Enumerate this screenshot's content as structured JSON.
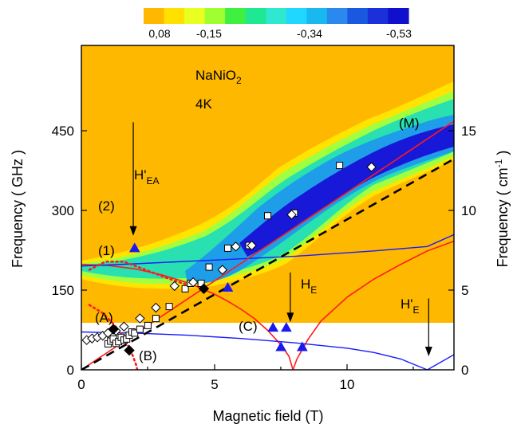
{
  "chart_data": {
    "type": "heatmap",
    "title": "",
    "xlabel": "Magnetic field (T)",
    "ylabel_left": "Frequency ( GHz )",
    "ylabel_right": "Frequency ( cm-1 )",
    "xlim": [
      0,
      14
    ],
    "ylim_left": [
      0,
      600
    ],
    "ylim_right": [
      0,
      20
    ],
    "x_ticks": [
      0,
      5,
      10
    ],
    "y_ticks_left": [
      0,
      150,
      300,
      450
    ],
    "y_ticks_right": [
      0,
      5,
      10,
      15
    ],
    "colorbar": {
      "tick_labels": [
        "0,08",
        "-0,15",
        "-0,34",
        "-0,53"
      ],
      "colors": [
        "#ffb800",
        "#ffe000",
        "#e8ff20",
        "#a0ff30",
        "#40f040",
        "#20e890",
        "#30e8d0",
        "#20d8ff",
        "#1ab8f0",
        "#2a88ee",
        "#1a58e0",
        "#1a30d8",
        "#1010cc"
      ]
    },
    "heatmap_colors": {
      "background": "#ffb800",
      "weak": "#ffe400",
      "mid_low": "#50f050",
      "mid": "#28e0b0",
      "strong": "#1e9ee8",
      "strongest": "#1818d8",
      "no_data": "#ffffff"
    },
    "no_data_below_frequency": 90,
    "annotations": {
      "sample": "NaNiO",
      "sample_sub": "2",
      "temperature": "4K",
      "M": "(M)",
      "one": "(1)",
      "two": "(2)",
      "A": "(A)",
      "B": "(B)",
      "C": "(C)",
      "HEA_main": "H'",
      "HEA_sub": "EA",
      "HE_main": "H",
      "HE_sub": "E",
      "HpE_main": "H'",
      "HpE_sub": "E"
    },
    "arrows": [
      {
        "name": "H'EA",
        "x": 1.95,
        "from": 458,
        "to": 248
      },
      {
        "name": "HE",
        "x": 7.85,
        "from": 180,
        "to": 88
      },
      {
        "name": "H'E",
        "x": 13.05,
        "from": 132,
        "to": 25
      }
    ],
    "series": [
      {
        "kind": "red-line",
        "x": [
          0,
          14
        ],
        "y": [
          0,
          460
        ]
      },
      {
        "kind": "red-curve-upper",
        "x": [
          0,
          1,
          2,
          3,
          4,
          5,
          5.5,
          6,
          6.5,
          7,
          7.5,
          7.8,
          7.95
        ],
        "y": [
          195,
          193,
          187,
          176,
          161,
          140,
          127,
          112,
          95,
          73,
          46,
          25,
          0
        ]
      },
      {
        "kind": "red-curve-lower",
        "x": [
          7.95,
          8.1,
          8.5,
          9,
          10,
          11,
          12,
          13,
          14
        ],
        "y": [
          0,
          20,
          55,
          90,
          135,
          168,
          195,
          220,
          238
        ]
      },
      {
        "kind": "black-dashed",
        "x": [
          0,
          14
        ],
        "y": [
          0,
          390
        ]
      },
      {
        "kind": "blue-line-upper",
        "x": [
          0,
          2,
          5,
          8,
          11,
          13,
          14
        ],
        "y": [
          192,
          196,
          203,
          210,
          220,
          228,
          250
        ]
      },
      {
        "kind": "blue-curve-lower",
        "x": [
          0,
          2,
          4,
          6,
          8,
          10,
          11,
          12,
          12.6,
          13,
          14
        ],
        "y": [
          70,
          68,
          64,
          58,
          50,
          40,
          32,
          20,
          8,
          0,
          28
        ]
      },
      {
        "kind": "red-dotted-upper",
        "x": [
          0.3,
          0.9,
          1.6,
          2.4,
          3.2,
          3.8,
          4.2
        ],
        "y": [
          185,
          200,
          200,
          185,
          170,
          160,
          155
        ]
      },
      {
        "kind": "red-dotted-lower",
        "x": [
          0.3,
          0.8,
          1.2,
          1.6,
          1.9,
          2.05,
          2.1
        ],
        "y": [
          120,
          105,
          85,
          60,
          30,
          10,
          0
        ]
      },
      {
        "kind": "open-squares",
        "points": [
          [
            1.0,
            48
          ],
          [
            1.1,
            53
          ],
          [
            1.2,
            57
          ],
          [
            1.3,
            49
          ],
          [
            1.4,
            52
          ],
          [
            1.5,
            60
          ],
          [
            1.6,
            55
          ],
          [
            1.7,
            57
          ],
          [
            1.8,
            64
          ],
          [
            1.9,
            70
          ],
          [
            2.0,
            68
          ],
          [
            2.2,
            75
          ],
          [
            2.5,
            82
          ],
          [
            2.8,
            95
          ],
          [
            3.3,
            117
          ],
          [
            3.9,
            150
          ],
          [
            4.1,
            160
          ],
          [
            4.5,
            160
          ],
          [
            4.8,
            190
          ],
          [
            5.5,
            225
          ],
          [
            6.3,
            230
          ],
          [
            7.0,
            285
          ],
          [
            8.0,
            290
          ],
          [
            9.7,
            378
          ]
        ]
      },
      {
        "kind": "open-diamonds",
        "points": [
          [
            0.2,
            55
          ],
          [
            0.4,
            58
          ],
          [
            0.6,
            60
          ],
          [
            0.8,
            63
          ],
          [
            1.0,
            68
          ],
          [
            1.3,
            72
          ],
          [
            1.6,
            80
          ],
          [
            2.2,
            95
          ],
          [
            2.8,
            115
          ],
          [
            3.5,
            155
          ],
          [
            4.2,
            162
          ],
          [
            5.3,
            185
          ],
          [
            5.8,
            228
          ],
          [
            6.4,
            230
          ],
          [
            7.9,
            287
          ],
          [
            10.9,
            375
          ]
        ]
      },
      {
        "kind": "filled-diamonds",
        "points": [
          [
            1.2,
            75
          ],
          [
            1.8,
            36
          ],
          [
            4.6,
            150
          ]
        ]
      },
      {
        "kind": "blue-triangles",
        "points": [
          [
            2.0,
            225
          ],
          [
            5.5,
            152
          ],
          [
            7.2,
            78
          ],
          [
            7.7,
            78
          ],
          [
            7.5,
            42
          ],
          [
            8.3,
            42
          ]
        ]
      }
    ]
  }
}
